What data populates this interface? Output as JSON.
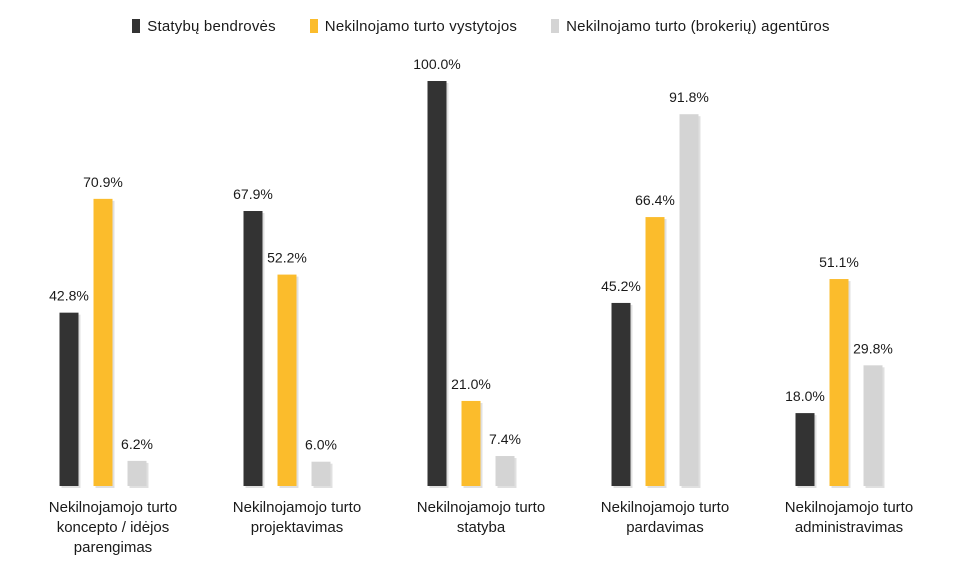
{
  "chart_data": {
    "type": "bar",
    "categories": [
      [
        "Nekilnojamojo turto",
        "koncepto / idėjos",
        "parengimas"
      ],
      [
        "Nekilnojamojo turto",
        "projektavimas"
      ],
      [
        "Nekilnojamojo turto",
        "statyba"
      ],
      [
        "Nekilnojamojo turto",
        "pardavimas"
      ],
      [
        "Nekilnojamojo turto",
        "administravimas"
      ]
    ],
    "series": [
      {
        "name": "Statybų bendrovės",
        "color": "#333333",
        "values": [
          42.8,
          67.9,
          100.0,
          45.2,
          18.0
        ],
        "labels": [
          "42.8%",
          "67.9%",
          "100.0%",
          "45.2%",
          "18.0%"
        ]
      },
      {
        "name": "Nekilnojamo turto vystytojos",
        "color": "#FBBC2C",
        "values": [
          70.9,
          52.2,
          21.0,
          66.4,
          51.1
        ],
        "labels": [
          "70.9%",
          "52.2%",
          "21.0%",
          "66.4%",
          "51.1%"
        ]
      },
      {
        "name": "Nekilnojamo turto (brokerių) agentūros",
        "color": "#D4D4D4",
        "values": [
          6.2,
          6.0,
          7.4,
          91.8,
          29.8
        ],
        "labels": [
          "6.2%",
          "6.0%",
          "7.4%",
          "91.8%",
          "29.8%"
        ]
      }
    ],
    "ylim": [
      0,
      100
    ],
    "grid": false,
    "legend_position": "top"
  }
}
